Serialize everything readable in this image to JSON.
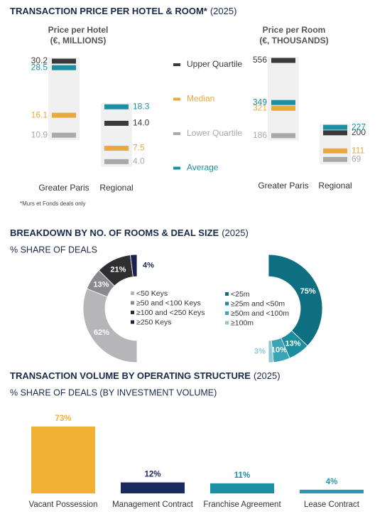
{
  "chart_data": [
    {
      "type": "range",
      "title": "TRANSACTION PRICE PER HOTEL & ROOM*",
      "title_suffix": "(2025)",
      "subtitle": "Price per Hotel",
      "unit_label": "(€, MILLIONS)",
      "categories": [
        "Greater Paris",
        "Regional"
      ],
      "series": [
        {
          "name": "Upper Quartile",
          "color": "#3a3a3c",
          "values": [
            30.2,
            14.0
          ],
          "value_labels": [
            "30.2",
            "14.0"
          ]
        },
        {
          "name": "Median",
          "color": "#e9a93b",
          "values": [
            16.1,
            7.5
          ]
        },
        {
          "name": "Lower Quartile",
          "color": "#a9a9ac",
          "values": [
            10.9,
            4.0
          ],
          "value_labels": [
            "10.9",
            "4.0"
          ]
        },
        {
          "name": "Average",
          "color": "#1a90a2",
          "values": [
            28.5,
            18.3
          ]
        }
      ],
      "footnote": "*Murs et Fonds deals only"
    },
    {
      "type": "range",
      "subtitle": "Price per Room",
      "unit_label": "(€, THOUSANDS)",
      "categories": [
        "Greater Paris",
        "Regional"
      ],
      "series": [
        {
          "name": "Upper Quartile",
          "color": "#3a3a3c",
          "values": [
            556,
            200
          ]
        },
        {
          "name": "Median",
          "color": "#e9a93b",
          "values": [
            321,
            111
          ]
        },
        {
          "name": "Lower Quartile",
          "color": "#a9a9ac",
          "values": [
            186,
            69
          ]
        },
        {
          "name": "Average",
          "color": "#1a90a2",
          "values": [
            349,
            227
          ]
        }
      ]
    },
    {
      "type": "half-donut",
      "title": "BREAKDOWN BY NO. OF ROOMS & DEAL SIZE",
      "title_suffix": "(2025)",
      "subtitle": "% SHARE OF DEALS",
      "side": "left",
      "categories": [
        "<50 Keys",
        "≥50 and <100 Keys",
        "≥100 and <250 Keys",
        "≥250 Keys"
      ],
      "values": [
        62,
        13,
        21,
        4
      ],
      "value_labels": [
        "62%",
        "13%",
        "21%",
        "4%"
      ],
      "colors": [
        "#b6b6b9",
        "#8a8a8e",
        "#2f2f31",
        "#1c2050"
      ]
    },
    {
      "type": "half-donut",
      "side": "right",
      "categories": [
        "<25m",
        "≥25m and <50m",
        "≥50m and <100m",
        "≥100m"
      ],
      "values": [
        75,
        13,
        10,
        3
      ],
      "value_labels": [
        "75%",
        "13%",
        "10%",
        "3%"
      ],
      "colors": [
        "#0e6f80",
        "#1a8d9f",
        "#3aa3b6",
        "#8ec8d4"
      ]
    },
    {
      "type": "bar",
      "title": "TRANSACTION VOLUME BY OPERATING STRUCTURE",
      "title_suffix": "(2025)",
      "subtitle": "% SHARE OF DEALS (BY INVESTMENT VOLUME)",
      "categories": [
        "Vacant Possession",
        "Management Contract",
        "Franchise Agreement",
        "Lease Contract"
      ],
      "values": [
        73,
        12,
        11,
        4
      ],
      "value_labels": [
        "73%",
        "12%",
        "11%",
        "4%"
      ],
      "colors": [
        "#f0b032",
        "#1b2a5c",
        "#1a90a2",
        "#2a99b1"
      ]
    }
  ]
}
